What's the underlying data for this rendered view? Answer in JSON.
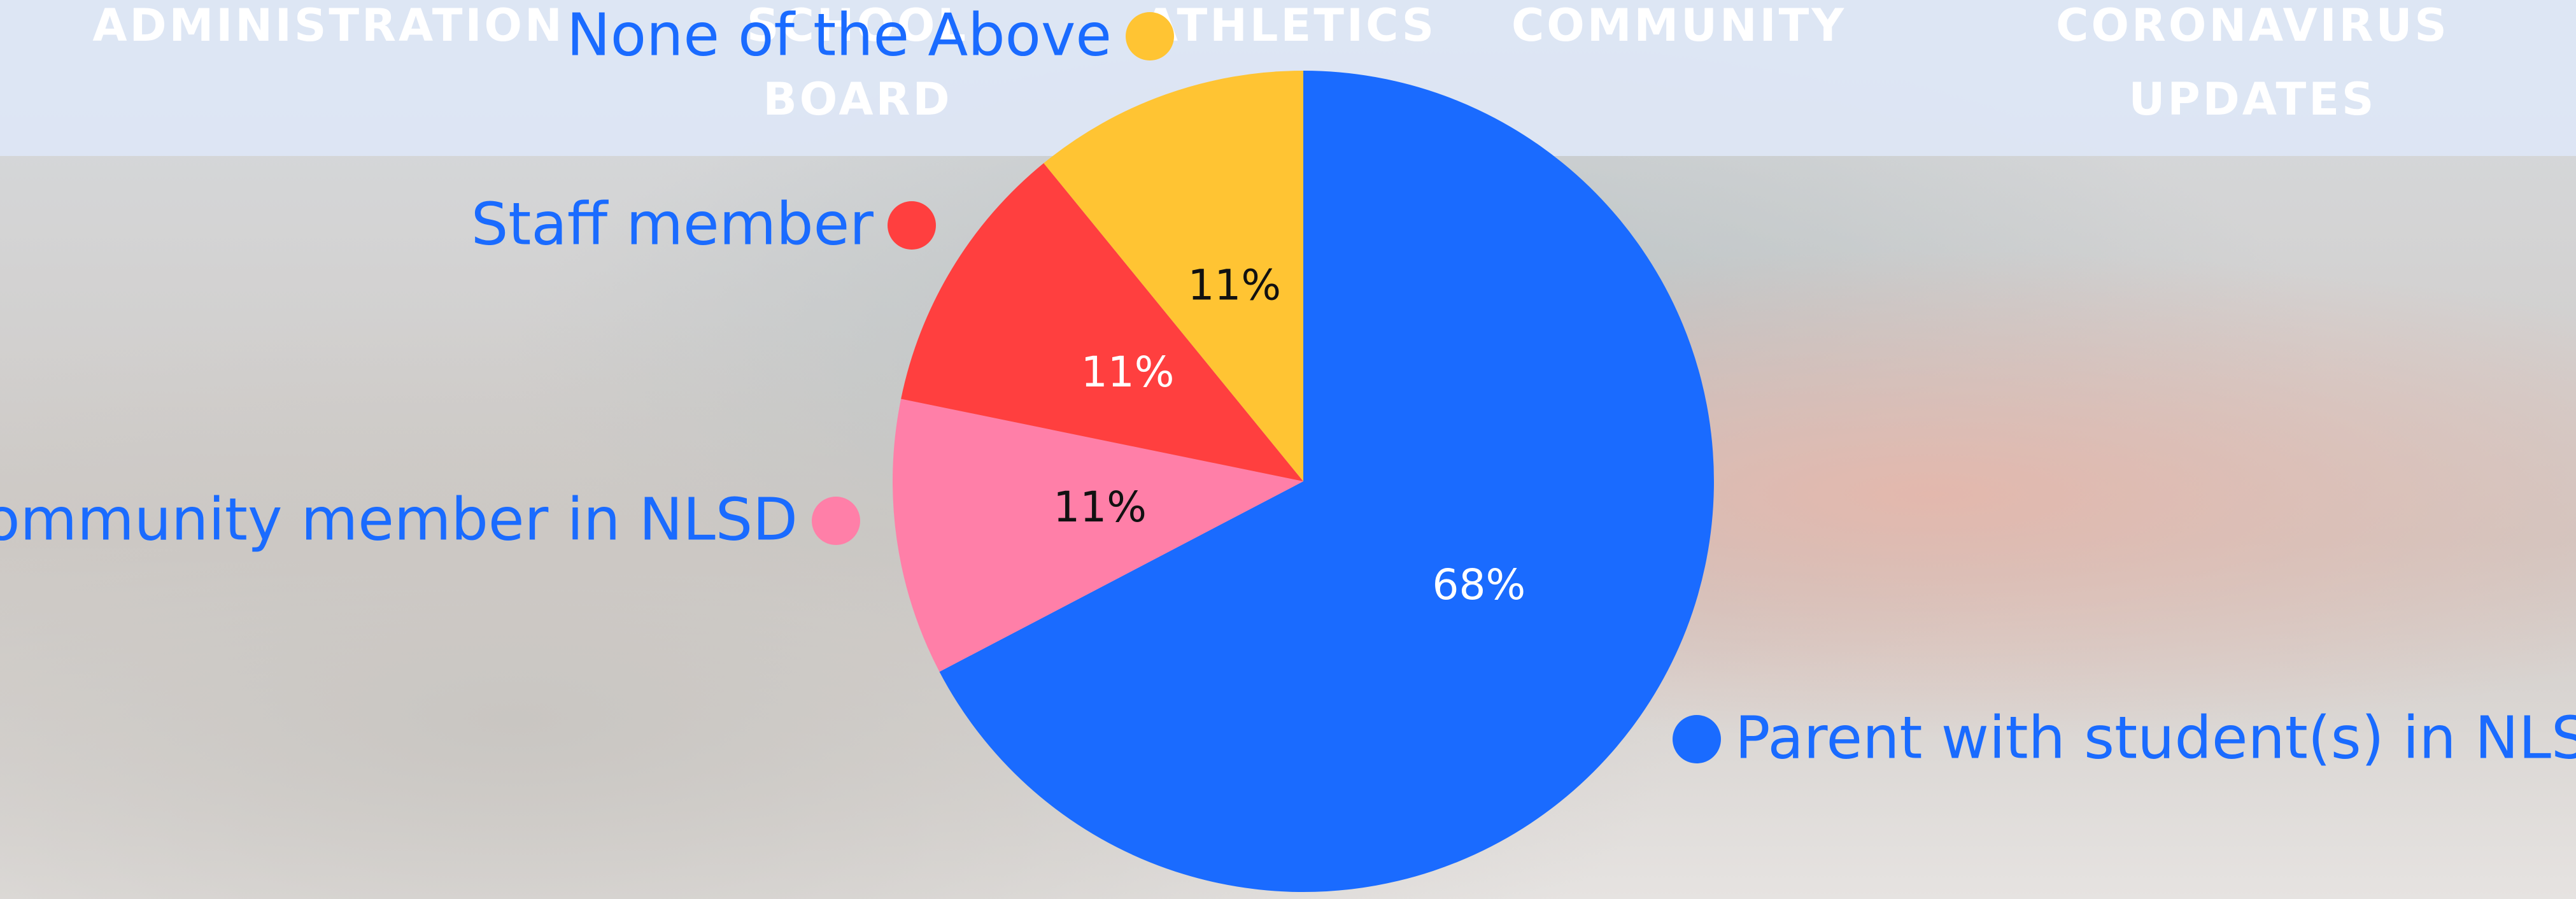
{
  "nav": {
    "items": [
      "ADMINISTRATION",
      "SCHOOL BOARD",
      "ATHLETICS",
      "COMMUNITY",
      "CORONAVIRUS UPDATES"
    ]
  },
  "chart_data": {
    "type": "pie",
    "categories": [
      "Parent with student(s) in NLSD",
      "Community member in NLSD",
      "Staff member",
      "None of the Above"
    ],
    "values": [
      68,
      11,
      11,
      11
    ],
    "value_labels": [
      "68%",
      "11%",
      "11%",
      "11%"
    ],
    "colors": [
      "#1a6bff",
      "#ff7fa8",
      "#ff3f3f",
      "#ffc433"
    ]
  }
}
